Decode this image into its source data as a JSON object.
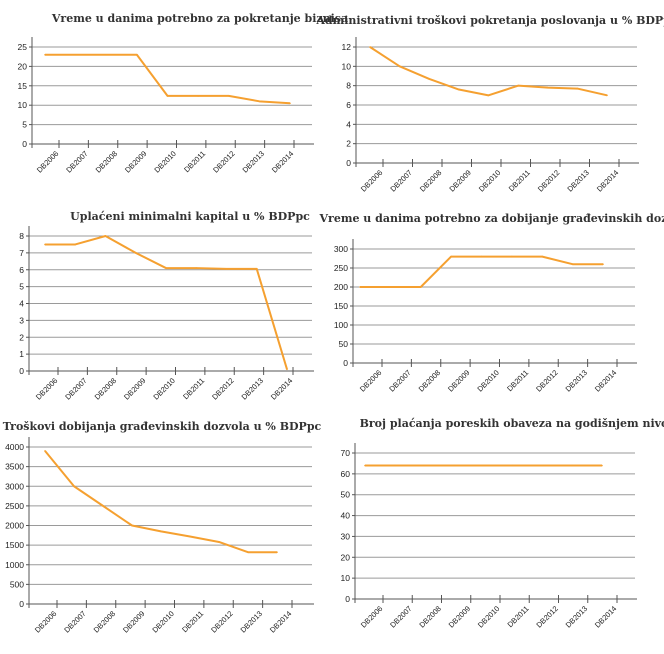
{
  "chart_data": [
    {
      "type": "line",
      "title": "Vreme u danima potrebno za pokretanje biznisa",
      "categories": [
        "DB2006",
        "DB2007",
        "DB2008",
        "DB2009",
        "DB2010",
        "DB2011",
        "DB2012",
        "DB2013",
        "DB2014"
      ],
      "values": [
        23,
        23,
        23,
        23,
        12.4,
        12.4,
        12.4,
        11,
        10.5
      ],
      "ylim": [
        0,
        25
      ],
      "yticks": [
        0,
        5,
        10,
        15,
        20,
        25
      ],
      "grid": true,
      "color": "#F5A030"
    },
    {
      "type": "line",
      "title": "Administrativni troškovi pokretanja poslovanja u % BDPpc",
      "categories": [
        "DB2006",
        "DB2007",
        "DB2008",
        "DB2009",
        "DB2010",
        "DB2011",
        "DB2012",
        "DB2013",
        "DB2014"
      ],
      "values": [
        12,
        10,
        8.7,
        7.6,
        7,
        8,
        7.8,
        7.7,
        7
      ],
      "ylim": [
        0,
        12
      ],
      "yticks": [
        0,
        2,
        4,
        6,
        8,
        10,
        12
      ],
      "grid": true,
      "color": "#F5A030"
    },
    {
      "type": "line",
      "title": "Uplaćeni minimalni kapital u % BDPpc",
      "categories": [
        "DB2006",
        "DB2007",
        "DB2008",
        "DB2009",
        "DB2010",
        "DB2011",
        "DB2012",
        "DB2013",
        "DB2014"
      ],
      "values": [
        7.5,
        7.5,
        8,
        7,
        6.1,
        6.1,
        6.05,
        6.05,
        0.1
      ],
      "ylim": [
        0,
        8
      ],
      "yticks": [
        0,
        1,
        2,
        3,
        4,
        5,
        6,
        7,
        8
      ],
      "grid": true,
      "color": "#F5A030"
    },
    {
      "type": "line",
      "title": "Vreme u danima potrebno za dobijanje građevinskih dozvola",
      "categories": [
        "DB2006",
        "DB2007",
        "DB2008",
        "DB2009",
        "DB2010",
        "DB2011",
        "DB2012",
        "DB2013",
        "DB2014"
      ],
      "values": [
        200,
        200,
        200,
        280,
        280,
        280,
        280,
        260,
        260
      ],
      "ylim": [
        0,
        300
      ],
      "yticks": [
        0,
        50,
        100,
        150,
        200,
        250,
        300
      ],
      "grid": true,
      "color": "#F5A030"
    },
    {
      "type": "line",
      "title": "Troškovi dobijanja građevinskih dozvola u % BDPpc",
      "categories": [
        "DB2006",
        "DB2007",
        "DB2008",
        "DB2009",
        "DB2010",
        "DB2011",
        "DB2012",
        "DB2013",
        "DB2014"
      ],
      "values": [
        3900,
        3000,
        2500,
        2000,
        1850,
        1720,
        1580,
        1320,
        1320
      ],
      "ylim": [
        0,
        4000
      ],
      "yticks": [
        0,
        500,
        1000,
        1500,
        2000,
        2500,
        3000,
        3500,
        4000
      ],
      "grid": true,
      "color": "#F5A030"
    },
    {
      "type": "line",
      "title": "Broj plaćanja poreskih obaveza na godišnjem nivou",
      "categories": [
        "DB2006",
        "DB2007",
        "DB2008",
        "DB2009",
        "DB2010",
        "DB2011",
        "DB2012",
        "DB2013",
        "DB2014"
      ],
      "values": [
        64,
        64,
        64,
        64,
        64,
        64,
        64,
        64,
        64
      ],
      "ylim": [
        0,
        70
      ],
      "yticks": [
        0,
        10,
        20,
        30,
        40,
        50,
        60,
        70
      ],
      "grid": true,
      "color": "#F5A030"
    }
  ]
}
